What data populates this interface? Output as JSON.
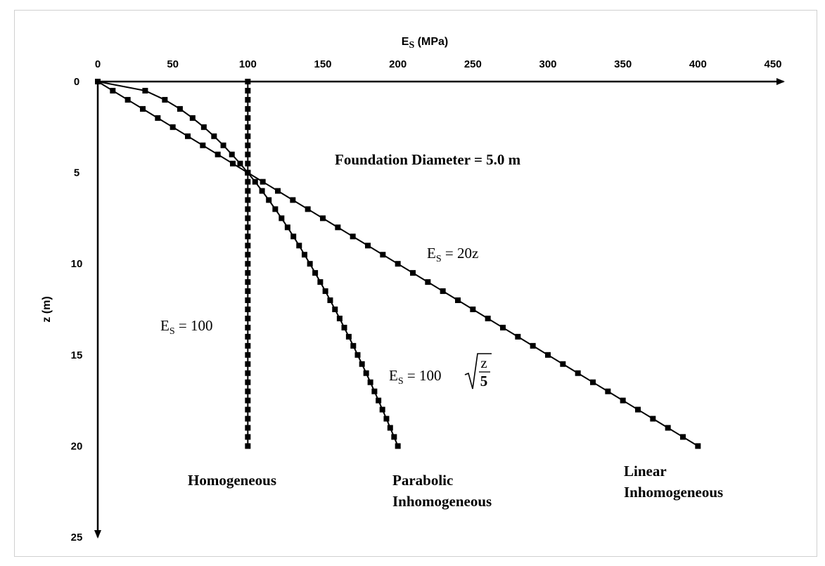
{
  "chart_data": {
    "type": "line",
    "title": "",
    "xlabel": "E",
    "xlabel_sub": "S",
    "xlabel_unit": " (MPa)",
    "ylabel": "z (m)",
    "xlim": [
      0,
      450
    ],
    "ylim": [
      0,
      25
    ],
    "x_ticks": [
      "0",
      "50",
      "100",
      "150",
      "200",
      "250",
      "300",
      "350",
      "400",
      "450"
    ],
    "y_ticks": [
      "0",
      "5",
      "10",
      "15",
      "20",
      "25"
    ],
    "grid": false,
    "annotation": "Foundation Diameter = 5.0 m",
    "series": [
      {
        "name": "Homogeneous",
        "equation": {
          "lhs": "E",
          "sub": "S",
          "rhs": " = 100"
        },
        "z": [
          0,
          0.5,
          1,
          1.5,
          2,
          2.5,
          3,
          3.5,
          4,
          4.5,
          5,
          5.5,
          6,
          6.5,
          7,
          7.5,
          8,
          8.5,
          9,
          9.5,
          10,
          10.5,
          11,
          11.5,
          12,
          12.5,
          13,
          13.5,
          14,
          14.5,
          15,
          15.5,
          16,
          16.5,
          17,
          17.5,
          18,
          18.5,
          19,
          19.5,
          20
        ],
        "Es": [
          100,
          100,
          100,
          100,
          100,
          100,
          100,
          100,
          100,
          100,
          100,
          100,
          100,
          100,
          100,
          100,
          100,
          100,
          100,
          100,
          100,
          100,
          100,
          100,
          100,
          100,
          100,
          100,
          100,
          100,
          100,
          100,
          100,
          100,
          100,
          100,
          100,
          100,
          100,
          100,
          100
        ]
      },
      {
        "name": "Parabolic Inhomogeneous",
        "name_lines": [
          "Parabolic",
          "Inhomogeneous"
        ],
        "equation": {
          "lhs": "E",
          "sub": "S",
          "rhs": " = 100",
          "num": "z",
          "den": "5"
        },
        "z": [
          0,
          0.5,
          1,
          1.5,
          2,
          2.5,
          3,
          3.5,
          4,
          4.5,
          5,
          5.5,
          6,
          6.5,
          7,
          7.5,
          8,
          8.5,
          9,
          9.5,
          10,
          10.5,
          11,
          11.5,
          12,
          12.5,
          13,
          13.5,
          14,
          14.5,
          15,
          15.5,
          16,
          16.5,
          17,
          17.5,
          18,
          18.5,
          19,
          19.5,
          20
        ],
        "Es": [
          0,
          31.6,
          44.7,
          54.8,
          63.2,
          70.7,
          77.5,
          83.7,
          89.4,
          94.9,
          100,
          104.9,
          109.5,
          114.0,
          118.3,
          122.5,
          126.5,
          130.4,
          134.2,
          137.8,
          141.4,
          144.9,
          148.3,
          151.7,
          154.9,
          158.1,
          161.2,
          164.3,
          167.3,
          170.3,
          173.2,
          176.1,
          178.9,
          181.7,
          184.4,
          187.1,
          189.7,
          192.4,
          194.9,
          197.5,
          200
        ]
      },
      {
        "name": "Linear Inhomogeneous",
        "name_lines": [
          "Linear",
          "Inhomogeneous"
        ],
        "equation": {
          "lhs": "E",
          "sub": "S",
          "rhs": " = 20z"
        },
        "z": [
          0,
          0.5,
          1,
          1.5,
          2,
          2.5,
          3,
          3.5,
          4,
          4.5,
          5,
          5.5,
          6,
          6.5,
          7,
          7.5,
          8,
          8.5,
          9,
          9.5,
          10,
          10.5,
          11,
          11.5,
          12,
          12.5,
          13,
          13.5,
          14,
          14.5,
          15,
          15.5,
          16,
          16.5,
          17,
          17.5,
          18,
          18.5,
          19,
          19.5,
          20
        ],
        "Es": [
          0,
          10,
          20,
          30,
          40,
          50,
          60,
          70,
          80,
          90,
          100,
          110,
          120,
          130,
          140,
          150,
          160,
          170,
          180,
          190,
          200,
          210,
          220,
          230,
          240,
          250,
          260,
          270,
          280,
          290,
          300,
          310,
          320,
          330,
          340,
          350,
          360,
          370,
          380,
          390,
          400
        ]
      }
    ]
  }
}
